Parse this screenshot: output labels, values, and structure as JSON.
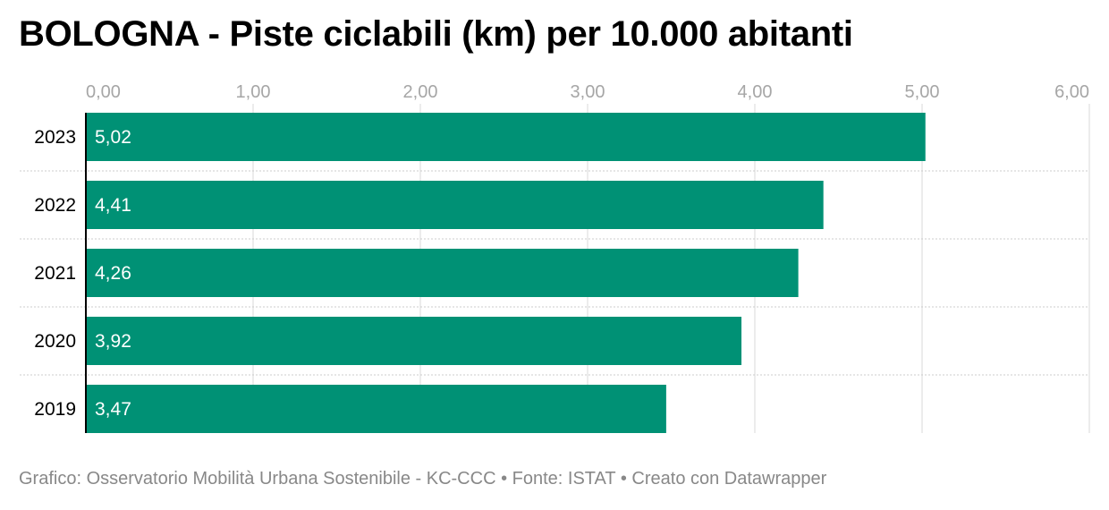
{
  "title": "BOLOGNA - Piste ciclabili (km) per 10.000 abitanti",
  "footer": {
    "credit": "Grafico: Osservatorio Mobilità Urbana Sostenibile - KC-CCC",
    "separator": "•",
    "source": "Fonte: ISTAT",
    "tool": "Creato con Datawrapper"
  },
  "colors": {
    "bar": "#009175",
    "bar_label": "#ffffff",
    "tick_label": "#a6a6a6",
    "grid": "#d9d9d9",
    "row_separator": "#cccccc",
    "baseline": "#000000"
  },
  "chart_data": {
    "type": "bar",
    "orientation": "horizontal",
    "categories": [
      "2023",
      "2022",
      "2021",
      "2020",
      "2019"
    ],
    "values": [
      5.02,
      4.41,
      4.26,
      3.92,
      3.47
    ],
    "value_labels": [
      "5,02",
      "4,41",
      "4,26",
      "3,92",
      "3,47"
    ],
    "xlim": [
      0,
      6
    ],
    "xticks": [
      0,
      1,
      2,
      3,
      4,
      5,
      6
    ],
    "xtick_labels": [
      "0,00",
      "1,00",
      "2,00",
      "3,00",
      "4,00",
      "5,00",
      "6,00"
    ],
    "xaxis_position": "top",
    "grid": true,
    "legend": "none"
  }
}
